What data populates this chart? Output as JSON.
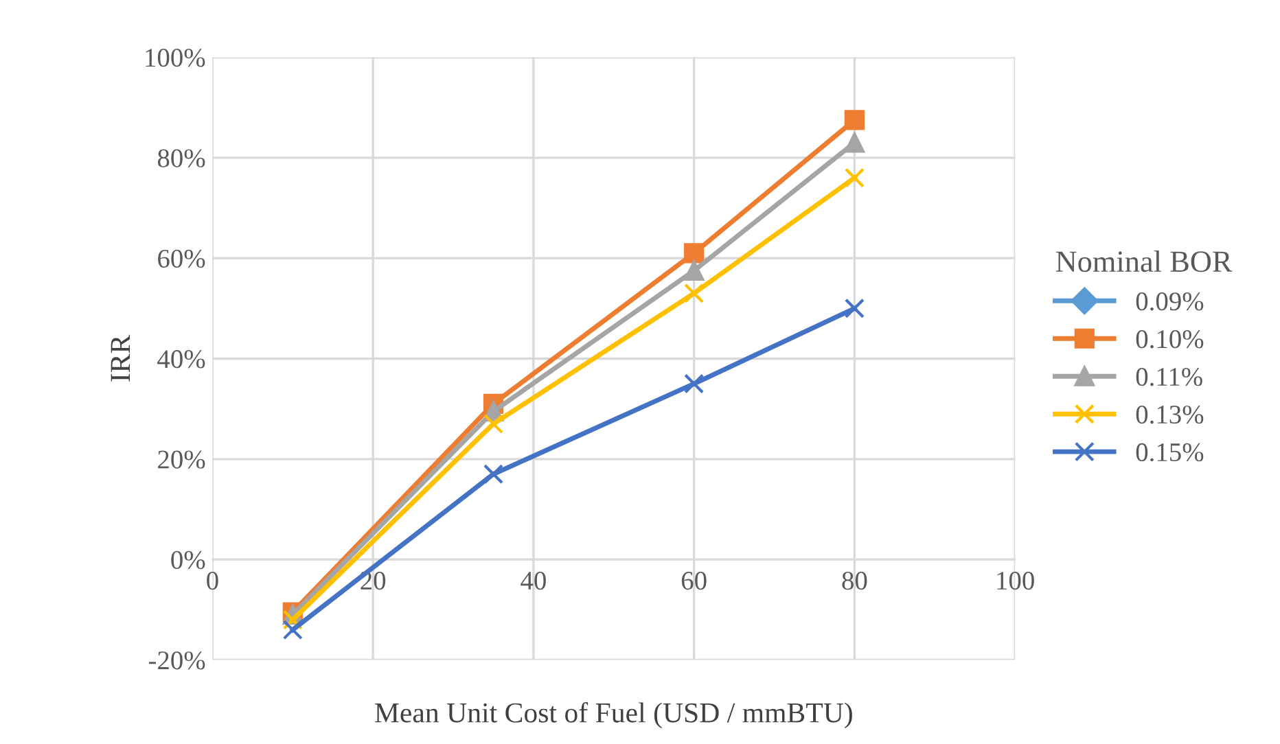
{
  "chart_data": {
    "type": "line",
    "xlabel": "Mean Unit Cost of Fuel (USD / mmBTU)",
    "ylabel": "IRR",
    "legend_title": "Nominal BOR",
    "x": [
      10,
      35,
      60,
      80
    ],
    "series": [
      {
        "name": "0.09%",
        "color": "#5b9bd5",
        "marker": "diamond",
        "values": [
          null,
          null,
          null,
          null
        ]
      },
      {
        "name": "0.10%",
        "color": "#ed7d31",
        "marker": "square",
        "values": [
          -10.5,
          31,
          61,
          87.5
        ]
      },
      {
        "name": "0.11%",
        "color": "#a5a5a5",
        "marker": "triangle",
        "values": [
          -11,
          29.5,
          57.5,
          83
        ]
      },
      {
        "name": "0.13%",
        "color": "#ffc000",
        "marker": "cross",
        "values": [
          -12,
          27,
          53,
          76
        ]
      },
      {
        "name": "0.15%",
        "color": "#4472c4",
        "marker": "cross",
        "values": [
          -14,
          17,
          35,
          50
        ]
      }
    ],
    "xlim": [
      0,
      100
    ],
    "xticks": [
      0,
      20,
      40,
      60,
      80,
      100
    ],
    "ylim": [
      -20,
      100
    ],
    "yticks": [
      {
        "value": -20,
        "label": "-20%"
      },
      {
        "value": 0,
        "label": "0%"
      },
      {
        "value": 20,
        "label": "20%"
      },
      {
        "value": 40,
        "label": "40%"
      },
      {
        "value": 60,
        "label": "60%"
      },
      {
        "value": 80,
        "label": "80%"
      },
      {
        "value": 100,
        "label": "100%"
      }
    ],
    "grid": true,
    "legend": "right",
    "line_style": "solid"
  }
}
